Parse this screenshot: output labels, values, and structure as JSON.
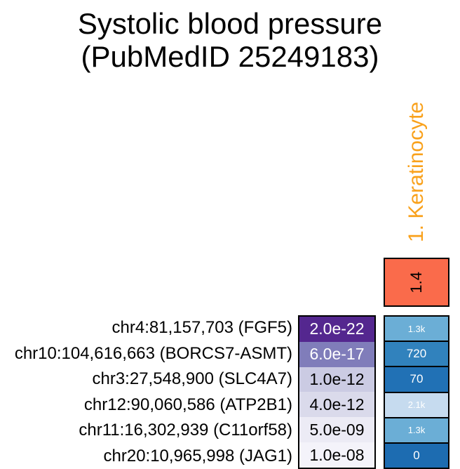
{
  "title": {
    "line1": "Systolic blood pressure",
    "line2": "(PubMedID 25249183)"
  },
  "column": {
    "label": "1. Keratinocyte",
    "score": "1.4"
  },
  "colors": {
    "column_label": "#F9A11B",
    "score_cell_bg": "#FA6B4B",
    "score_cell_text": "#000000"
  },
  "chart_data": {
    "type": "heatmap",
    "title": "Systolic blood pressure (PubMedID 25249183)",
    "columns": [
      "1. Keratinocyte"
    ],
    "column_scores": [
      1.4
    ],
    "column_score_bg": "#FA6B4B",
    "pvalue_palette": "Purples (darker = more significant)",
    "value_palette": "Blues (darker = lower value)",
    "legend_position": "none",
    "rows": [
      {
        "label": "chr4:81,157,703 (FGF5)",
        "pvalue": "2.0e-22",
        "pvalue_numeric": 2e-22,
        "pvalue_bg": "#54278F",
        "pvalue_text_color": "#FFFFFF",
        "value": "1.3k",
        "value_numeric": 1300,
        "value_bg": "#6BAED6",
        "value_text_color": "#FFFFFF"
      },
      {
        "label": "chr10:104,616,663 (BORCS7-ASMT)",
        "pvalue": "6.0e-17",
        "pvalue_numeric": 6e-17,
        "pvalue_bg": "#807DBA",
        "pvalue_text_color": "#FFFFFF",
        "value": "720",
        "value_numeric": 720,
        "value_bg": "#3182BD",
        "value_text_color": "#FFFFFF"
      },
      {
        "label": "chr3:27,548,900 (SLC4A7)",
        "pvalue": "1.0e-12",
        "pvalue_numeric": 1e-12,
        "pvalue_bg": "#CBCBE3",
        "pvalue_text_color": "#000000",
        "value": "70",
        "value_numeric": 70,
        "value_bg": "#2171B5",
        "value_text_color": "#FFFFFF"
      },
      {
        "label": "chr12:90,060,586 (ATP2B1)",
        "pvalue": "4.0e-12",
        "pvalue_numeric": 4e-12,
        "pvalue_bg": "#DADAEB",
        "pvalue_text_color": "#000000",
        "value": "2.1k",
        "value_numeric": 2100,
        "value_bg": "#C6DBEF",
        "value_text_color": "#FFFFFF"
      },
      {
        "label": "chr11:16,302,939 (C11orf58)",
        "pvalue": "5.0e-09",
        "pvalue_numeric": 5e-09,
        "pvalue_bg": "#ECEBF5",
        "pvalue_text_color": "#000000",
        "value": "1.3k",
        "value_numeric": 1300,
        "value_bg": "#6BAED6",
        "value_text_color": "#FFFFFF"
      },
      {
        "label": "chr20:10,965,998 (JAG1)",
        "pvalue": "1.0e-08",
        "pvalue_numeric": 1e-08,
        "pvalue_bg": "#F4F3FA",
        "pvalue_text_color": "#000000",
        "value": "0",
        "value_numeric": 0,
        "value_bg": "#1D6CB1",
        "value_text_color": "#FFFFFF"
      }
    ]
  }
}
